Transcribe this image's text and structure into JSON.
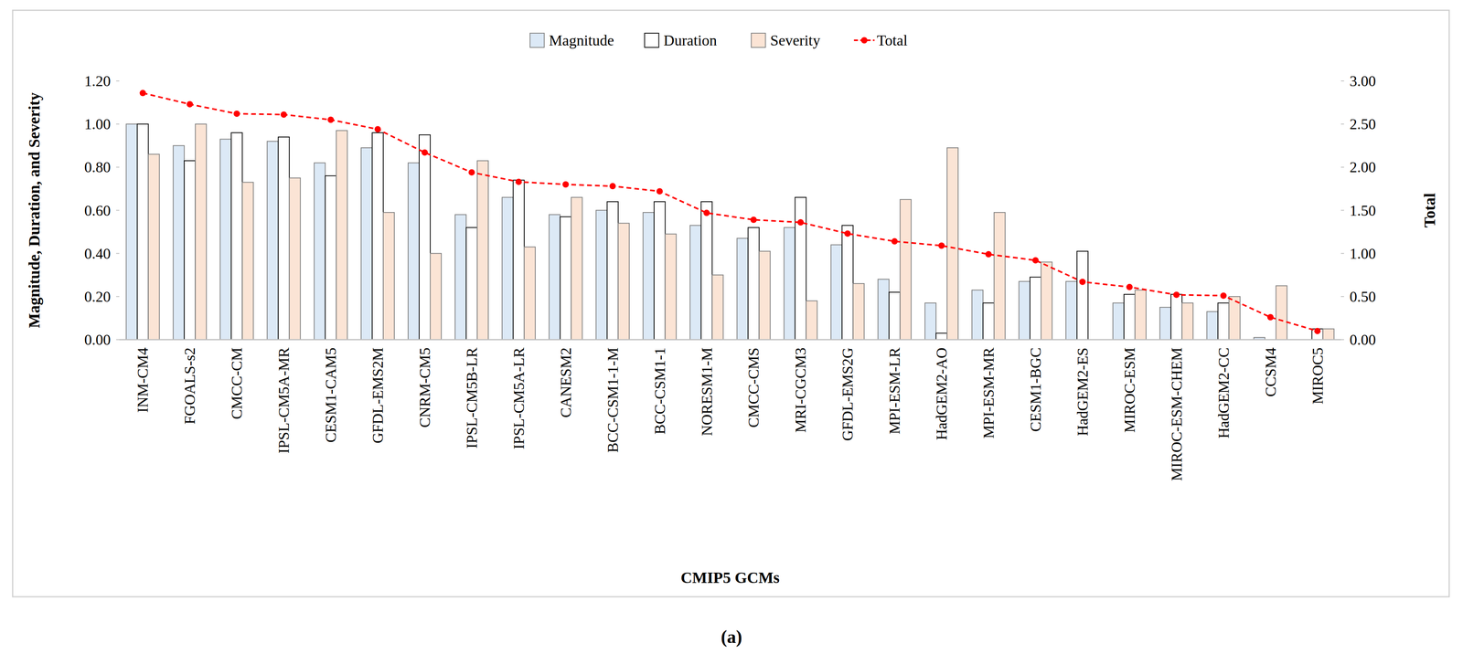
{
  "chart_data": {
    "type": "bar",
    "subtitle": "(a)",
    "x_label": "CMIP5 GCMs",
    "y_label": "Magnitude, Duration, and Severity",
    "y2_label": "Total",
    "categories": [
      "INM-CM4",
      "FGOALS-s2",
      "CMCC-CM",
      "IPSL-CM5A-MR",
      "CESM1-CAM5",
      "GFDL-EMS2M",
      "CNRM-CM5",
      "IPSL-CM5B-LR",
      "IPSL-CM5A-LR",
      "CANESM2",
      "BCC-CSM1-1-M",
      "BCC-CSM1-1",
      "NORESM1-M",
      "CMCC-CMS",
      "MRI-CGCM3",
      "GFDL-EMS2G",
      "MPI-ESM-LR",
      "HadGEM2-AO",
      "MPI-ESM-MR",
      "CESM1-BGC",
      "HadGEM2-ES",
      "MIROC-ESM",
      "MIROC-ESM-CHEM",
      "HadGEM2-CC",
      "CCSM4",
      "MIROC5"
    ],
    "series": [
      {
        "name": "Magnitude",
        "type": "bar",
        "color": "#dce9f6",
        "values": [
          1.0,
          0.9,
          0.93,
          0.92,
          0.82,
          0.89,
          0.82,
          0.58,
          0.66,
          0.58,
          0.6,
          0.59,
          0.53,
          0.47,
          0.52,
          0.44,
          0.28,
          0.17,
          0.23,
          0.27,
          0.27,
          0.17,
          0.15,
          0.13,
          0.01,
          0.0
        ]
      },
      {
        "name": "Duration",
        "type": "bar",
        "color": "#ffffff",
        "values": [
          1.0,
          0.83,
          0.96,
          0.94,
          0.76,
          0.96,
          0.95,
          0.52,
          0.74,
          0.57,
          0.64,
          0.64,
          0.64,
          0.52,
          0.66,
          0.53,
          0.22,
          0.03,
          0.17,
          0.29,
          0.41,
          0.21,
          0.21,
          0.17,
          0.0,
          0.05
        ]
      },
      {
        "name": "Severity",
        "type": "bar",
        "color": "#fbe4d5",
        "values": [
          0.86,
          1.0,
          0.73,
          0.75,
          0.97,
          0.59,
          0.4,
          0.83,
          0.43,
          0.66,
          0.54,
          0.49,
          0.3,
          0.41,
          0.18,
          0.26,
          0.65,
          0.89,
          0.59,
          0.36,
          0.0,
          0.23,
          0.17,
          0.2,
          0.25,
          0.05
        ]
      },
      {
        "name": "Total",
        "type": "line",
        "axis": "y2",
        "color": "#ff0000",
        "marker": "circle",
        "line_style": "dashed",
        "values": [
          2.86,
          2.73,
          2.62,
          2.61,
          2.55,
          2.44,
          2.17,
          1.94,
          1.83,
          1.8,
          1.78,
          1.72,
          1.47,
          1.39,
          1.36,
          1.23,
          1.14,
          1.09,
          0.99,
          0.92,
          0.67,
          0.61,
          0.52,
          0.51,
          0.26,
          0.1
        ]
      }
    ],
    "ylim": [
      0,
      1.2
    ],
    "yticks": [
      {
        "value": 0,
        "label": "0.00"
      },
      {
        "value": 0.2,
        "label": "0.20"
      },
      {
        "value": 0.4,
        "label": "0.40"
      },
      {
        "value": 0.6,
        "label": "0.60"
      },
      {
        "value": 0.8,
        "label": "0.80"
      },
      {
        "value": 1.0,
        "label": "1.00"
      },
      {
        "value": 1.2,
        "label": "1.20"
      }
    ],
    "y2lim": [
      0,
      3
    ],
    "y2ticks": [
      {
        "value": 0,
        "label": "0.00"
      },
      {
        "value": 0.5,
        "label": "0.50"
      },
      {
        "value": 1.0,
        "label": "1.00"
      },
      {
        "value": 1.5,
        "label": "1.50"
      },
      {
        "value": 2.0,
        "label": "2.00"
      },
      {
        "value": 2.5,
        "label": "2.50"
      },
      {
        "value": 3.0,
        "label": "3.00"
      }
    ],
    "grid": false,
    "legend": "top"
  }
}
